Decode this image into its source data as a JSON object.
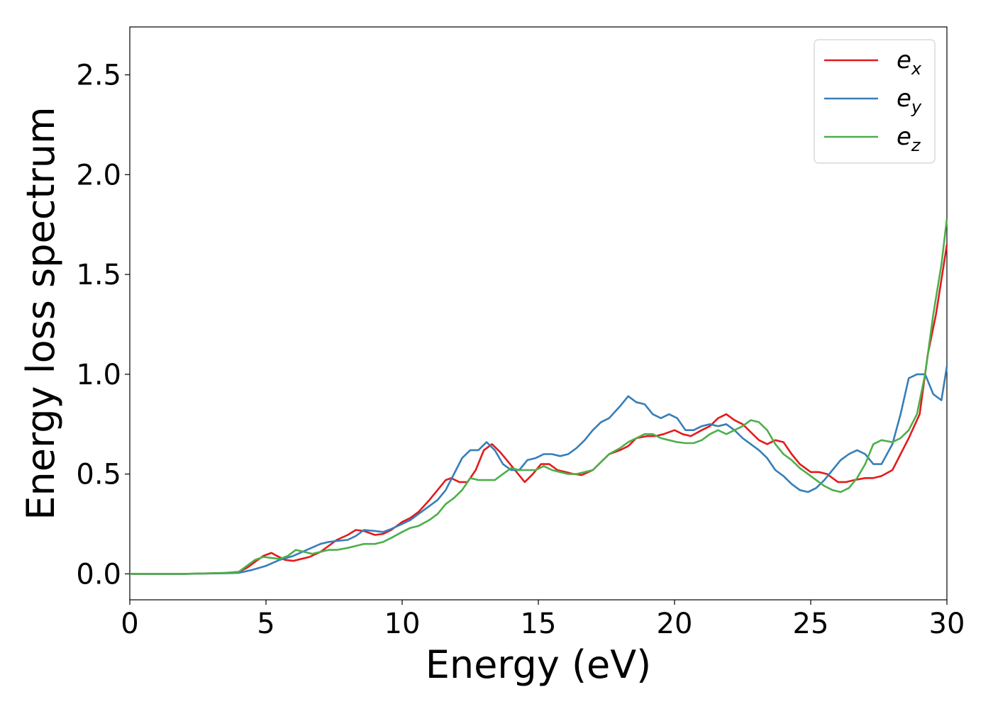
{
  "chart_data": {
    "type": "line",
    "xlabel": "Energy (eV)",
    "ylabel": "Energy loss spectrum",
    "xlim": [
      0,
      30
    ],
    "ylim": [
      -0.13,
      2.74
    ],
    "xticks": [
      0,
      5,
      10,
      15,
      20,
      25,
      30
    ],
    "xtick_labels": [
      "0",
      "5",
      "10",
      "15",
      "20",
      "25",
      "30"
    ],
    "yticks": [
      0.0,
      0.5,
      1.0,
      1.5,
      2.0,
      2.5
    ],
    "ytick_labels": [
      "0.0",
      "0.5",
      "1.0",
      "1.5",
      "2.0",
      "2.5"
    ],
    "grid": false,
    "legend_position": "top-right",
    "series": [
      {
        "name": "e_x",
        "label_base": "e",
        "label_sub": "x",
        "color": "#e41a1c",
        "x": [
          0,
          1,
          2,
          3,
          3.5,
          4,
          4.3,
          4.6,
          4.9,
          5.2,
          5.4,
          5.7,
          6,
          6.3,
          6.6,
          7,
          7.3,
          7.6,
          8,
          8.3,
          8.6,
          9,
          9.3,
          9.6,
          10,
          10.3,
          10.6,
          11,
          11.3,
          11.6,
          11.8,
          12.1,
          12.4,
          12.7,
          13,
          13.3,
          13.6,
          13.9,
          14.2,
          14.5,
          14.8,
          15.1,
          15.4,
          15.7,
          16,
          16.3,
          16.6,
          17,
          17.3,
          17.6,
          18,
          18.3,
          18.6,
          19,
          19.3,
          19.6,
          20,
          20.3,
          20.6,
          21,
          21.3,
          21.6,
          21.9,
          22.2,
          22.5,
          22.8,
          23.1,
          23.4,
          23.7,
          24,
          24.3,
          24.6,
          25,
          25.3,
          25.6,
          26,
          26.3,
          26.6,
          27,
          27.3,
          27.6,
          28,
          28.3,
          28.6,
          29,
          29.3,
          29.6,
          30
        ],
        "y": [
          0,
          0,
          0,
          0.003,
          0.005,
          0.01,
          0.03,
          0.06,
          0.09,
          0.105,
          0.09,
          0.07,
          0.065,
          0.075,
          0.085,
          0.11,
          0.14,
          0.17,
          0.195,
          0.22,
          0.215,
          0.195,
          0.2,
          0.22,
          0.26,
          0.28,
          0.31,
          0.37,
          0.42,
          0.47,
          0.48,
          0.46,
          0.46,
          0.52,
          0.62,
          0.65,
          0.61,
          0.56,
          0.51,
          0.46,
          0.5,
          0.55,
          0.55,
          0.52,
          0.51,
          0.5,
          0.495,
          0.52,
          0.56,
          0.6,
          0.62,
          0.64,
          0.68,
          0.69,
          0.69,
          0.7,
          0.72,
          0.7,
          0.69,
          0.72,
          0.74,
          0.78,
          0.8,
          0.77,
          0.75,
          0.71,
          0.67,
          0.65,
          0.67,
          0.66,
          0.6,
          0.55,
          0.51,
          0.51,
          0.5,
          0.46,
          0.46,
          0.47,
          0.48,
          0.48,
          0.49,
          0.52,
          0.6,
          0.68,
          0.8,
          1.1,
          1.3,
          1.65
        ]
      },
      {
        "name": "e_y",
        "label_base": "e",
        "label_sub": "y",
        "color": "#377eb8",
        "x": [
          0,
          1,
          2,
          3,
          3.5,
          4,
          4.5,
          5,
          5.5,
          6,
          6.5,
          7,
          7.3,
          7.6,
          8,
          8.3,
          8.6,
          9,
          9.3,
          9.6,
          10,
          10.3,
          10.6,
          11,
          11.3,
          11.6,
          11.9,
          12.2,
          12.5,
          12.8,
          13.1,
          13.4,
          13.7,
          14,
          14.3,
          14.6,
          14.9,
          15.2,
          15.5,
          15.8,
          16.1,
          16.4,
          16.7,
          17,
          17.3,
          17.6,
          18,
          18.3,
          18.6,
          18.9,
          19.2,
          19.5,
          19.8,
          20.1,
          20.4,
          20.7,
          21,
          21.3,
          21.6,
          21.9,
          22.2,
          22.5,
          22.8,
          23.1,
          23.4,
          23.7,
          24,
          24.3,
          24.6,
          24.9,
          25.2,
          25.5,
          25.8,
          26.1,
          26.4,
          26.7,
          27,
          27.3,
          27.6,
          28,
          28.3,
          28.6,
          28.9,
          29.2,
          29.5,
          29.8,
          30
        ],
        "y": [
          0,
          0,
          0,
          0.002,
          0.003,
          0.005,
          0.02,
          0.04,
          0.07,
          0.09,
          0.12,
          0.15,
          0.16,
          0.165,
          0.17,
          0.19,
          0.22,
          0.215,
          0.21,
          0.225,
          0.25,
          0.27,
          0.3,
          0.34,
          0.37,
          0.42,
          0.5,
          0.58,
          0.62,
          0.62,
          0.66,
          0.62,
          0.55,
          0.52,
          0.52,
          0.57,
          0.58,
          0.6,
          0.6,
          0.59,
          0.6,
          0.63,
          0.67,
          0.72,
          0.76,
          0.78,
          0.84,
          0.89,
          0.86,
          0.85,
          0.8,
          0.78,
          0.8,
          0.78,
          0.72,
          0.72,
          0.74,
          0.75,
          0.74,
          0.75,
          0.72,
          0.68,
          0.65,
          0.62,
          0.58,
          0.52,
          0.49,
          0.45,
          0.42,
          0.41,
          0.43,
          0.47,
          0.52,
          0.57,
          0.6,
          0.62,
          0.6,
          0.55,
          0.55,
          0.65,
          0.8,
          0.98,
          1.0,
          1.0,
          0.9,
          0.87,
          1.04
        ]
      },
      {
        "name": "e_z",
        "label_base": "e",
        "label_sub": "z",
        "color": "#4daf4a",
        "x": [
          0,
          1,
          2,
          3,
          3.5,
          4,
          4.3,
          4.6,
          4.9,
          5.2,
          5.5,
          5.8,
          6.1,
          6.4,
          6.7,
          7,
          7.3,
          7.6,
          8,
          8.3,
          8.6,
          9,
          9.3,
          9.6,
          10,
          10.3,
          10.6,
          11,
          11.3,
          11.6,
          11.9,
          12.2,
          12.5,
          12.8,
          13.1,
          13.4,
          13.7,
          14,
          14.3,
          14.6,
          14.9,
          15.2,
          15.5,
          15.8,
          16.1,
          16.4,
          16.7,
          17,
          17.3,
          17.6,
          18,
          18.3,
          18.6,
          18.9,
          19.2,
          19.5,
          19.8,
          20.1,
          20.4,
          20.7,
          21,
          21.3,
          21.6,
          21.9,
          22.2,
          22.5,
          22.8,
          23.1,
          23.4,
          23.7,
          24,
          24.3,
          24.6,
          24.9,
          25.2,
          25.5,
          25.8,
          26.1,
          26.4,
          26.7,
          27,
          27.3,
          27.6,
          28,
          28.3,
          28.6,
          28.9,
          29.2,
          29.5,
          29.8,
          30
        ],
        "y": [
          0,
          0,
          0,
          0.003,
          0.005,
          0.01,
          0.04,
          0.07,
          0.085,
          0.08,
          0.075,
          0.09,
          0.12,
          0.11,
          0.1,
          0.11,
          0.12,
          0.12,
          0.13,
          0.14,
          0.15,
          0.15,
          0.16,
          0.18,
          0.21,
          0.23,
          0.24,
          0.27,
          0.3,
          0.35,
          0.38,
          0.42,
          0.48,
          0.47,
          0.47,
          0.47,
          0.5,
          0.53,
          0.52,
          0.52,
          0.52,
          0.54,
          0.52,
          0.51,
          0.5,
          0.5,
          0.51,
          0.52,
          0.56,
          0.6,
          0.63,
          0.66,
          0.68,
          0.7,
          0.7,
          0.68,
          0.67,
          0.66,
          0.655,
          0.655,
          0.67,
          0.7,
          0.72,
          0.7,
          0.72,
          0.74,
          0.77,
          0.76,
          0.72,
          0.65,
          0.6,
          0.57,
          0.53,
          0.5,
          0.47,
          0.44,
          0.42,
          0.41,
          0.43,
          0.48,
          0.55,
          0.65,
          0.67,
          0.66,
          0.68,
          0.72,
          0.8,
          1.0,
          1.3,
          1.55,
          1.78
        ]
      }
    ]
  }
}
